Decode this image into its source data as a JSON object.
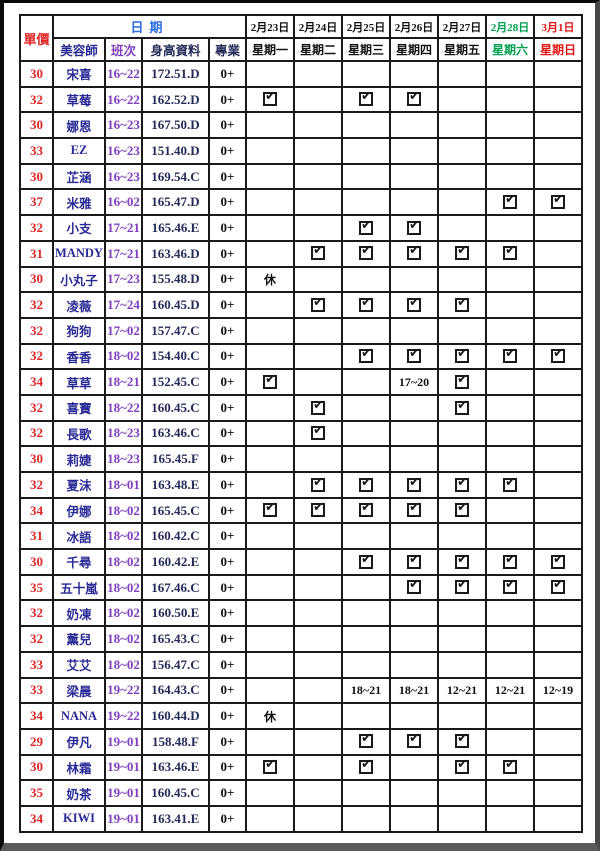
{
  "columns": {
    "price": "單價",
    "date_group": "日期",
    "name": "美容師",
    "shift": "班次",
    "stats": "身高資料",
    "specialty": "專業"
  },
  "days": [
    {
      "date": "2月23日",
      "weekday": "星期一",
      "color": "#111111"
    },
    {
      "date": "2月24日",
      "weekday": "星期二",
      "color": "#111111"
    },
    {
      "date": "2月25日",
      "weekday": "星期三",
      "color": "#111111"
    },
    {
      "date": "2月26日",
      "weekday": "星期四",
      "color": "#111111"
    },
    {
      "date": "2月27日",
      "weekday": "星期五",
      "color": "#111111"
    },
    {
      "date": "2月28日",
      "weekday": "星期六",
      "color": "#00A050"
    },
    {
      "date": "3月1日",
      "weekday": "星期日",
      "color": "#E01515"
    }
  ],
  "colors": {
    "price": "#e02525",
    "name": "#2a2a96",
    "shift": "#8040c0",
    "stats": "#242b58",
    "date_group": "#2a6de0",
    "saturday": "#00A050",
    "sunday": "#E01515",
    "grid": "#1a1a1a"
  },
  "legend": {
    "check_meaning": "checkbox-checked",
    "rest_label": "休"
  },
  "rows": [
    {
      "price": "30",
      "name": "宋喜",
      "shift": "16~22",
      "stats": "172.51.D",
      "spec": "0+",
      "days": [
        "",
        "",
        "",
        "",
        "",
        "",
        ""
      ]
    },
    {
      "price": "32",
      "name": "草莓",
      "shift": "16~22",
      "stats": "162.52.D",
      "spec": "0+",
      "days": [
        "check",
        "",
        "check",
        "check",
        "",
        "",
        ""
      ]
    },
    {
      "price": "30",
      "name": "娜恩",
      "shift": "16~23",
      "stats": "167.50.D",
      "spec": "0+",
      "days": [
        "",
        "",
        "",
        "",
        "",
        "",
        ""
      ]
    },
    {
      "price": "33",
      "name": "EZ",
      "shift": "16~23",
      "stats": "151.40.D",
      "spec": "0+",
      "days": [
        "",
        "",
        "",
        "",
        "",
        "",
        ""
      ]
    },
    {
      "price": "30",
      "name": "芷涵",
      "shift": "16~23",
      "stats": "169.54.C",
      "spec": "0+",
      "days": [
        "",
        "",
        "",
        "",
        "",
        "",
        ""
      ]
    },
    {
      "price": "37",
      "name": "米雅",
      "shift": "16~02",
      "stats": "165.47.D",
      "spec": "0+",
      "days": [
        "",
        "",
        "",
        "",
        "",
        "check",
        "check"
      ]
    },
    {
      "price": "32",
      "name": "小支",
      "shift": "17~21",
      "stats": "165.46.E",
      "spec": "0+",
      "days": [
        "",
        "",
        "check",
        "check",
        "",
        "",
        ""
      ]
    },
    {
      "price": "31",
      "name": "MANDY",
      "shift": "17~21",
      "stats": "163.46.D",
      "spec": "0+",
      "days": [
        "",
        "check",
        "check",
        "check",
        "check",
        "check",
        ""
      ]
    },
    {
      "price": "30",
      "name": "小丸子",
      "shift": "17~23",
      "stats": "155.48.D",
      "spec": "0+",
      "days": [
        "休",
        "",
        "",
        "",
        "",
        "",
        ""
      ]
    },
    {
      "price": "32",
      "name": "凌薇",
      "shift": "17~24",
      "stats": "160.45.D",
      "spec": "0+",
      "days": [
        "",
        "check",
        "check",
        "check",
        "check",
        "",
        ""
      ]
    },
    {
      "price": "32",
      "name": "狗狗",
      "shift": "17~02",
      "stats": "157.47.C",
      "spec": "0+",
      "days": [
        "",
        "",
        "",
        "",
        "",
        "",
        ""
      ]
    },
    {
      "price": "32",
      "name": "香香",
      "shift": "18~02",
      "stats": "154.40.C",
      "spec": "0+",
      "days": [
        "",
        "",
        "check",
        "check",
        "check",
        "check",
        "check"
      ]
    },
    {
      "price": "34",
      "name": "草草",
      "shift": "18~21",
      "stats": "152.45.C",
      "spec": "0+",
      "days": [
        "check",
        "",
        "",
        "17~20",
        "check",
        "",
        ""
      ]
    },
    {
      "price": "32",
      "name": "喜寶",
      "shift": "18~22",
      "stats": "160.45.C",
      "spec": "0+",
      "days": [
        "",
        "check",
        "",
        "",
        "check",
        "",
        ""
      ]
    },
    {
      "price": "32",
      "name": "長歌",
      "shift": "18~23",
      "stats": "163.46.C",
      "spec": "0+",
      "days": [
        "",
        "check",
        "",
        "",
        "",
        "",
        ""
      ]
    },
    {
      "price": "30",
      "name": "莉婕",
      "shift": "18~23",
      "stats": "165.45.F",
      "spec": "0+",
      "days": [
        "",
        "",
        "",
        "",
        "",
        "",
        ""
      ]
    },
    {
      "price": "32",
      "name": "夏沫",
      "shift": "18~01",
      "stats": "163.48.E",
      "spec": "0+",
      "days": [
        "",
        "check",
        "check",
        "check",
        "check",
        "check",
        ""
      ]
    },
    {
      "price": "34",
      "name": "伊娜",
      "shift": "18~02",
      "stats": "165.45.C",
      "spec": "0+",
      "days": [
        "check",
        "check",
        "check",
        "check",
        "check",
        "",
        ""
      ]
    },
    {
      "price": "31",
      "name": "冰語",
      "shift": "18~02",
      "stats": "160.42.C",
      "spec": "0+",
      "days": [
        "",
        "",
        "",
        "",
        "",
        "",
        ""
      ]
    },
    {
      "price": "30",
      "name": "千尋",
      "shift": "18~02",
      "stats": "160.42.E",
      "spec": "0+",
      "days": [
        "",
        "",
        "check",
        "check",
        "check",
        "check",
        "check"
      ]
    },
    {
      "price": "35",
      "name": "五十嵐",
      "shift": "18~02",
      "stats": "167.46.C",
      "spec": "0+",
      "days": [
        "",
        "",
        "",
        "check",
        "check",
        "check",
        "check"
      ]
    },
    {
      "price": "32",
      "name": "奶凍",
      "shift": "18~02",
      "stats": "160.50.E",
      "spec": "0+",
      "days": [
        "",
        "",
        "",
        "",
        "",
        "",
        ""
      ]
    },
    {
      "price": "32",
      "name": "薰兒",
      "shift": "18~02",
      "stats": "165.43.C",
      "spec": "0+",
      "days": [
        "",
        "",
        "",
        "",
        "",
        "",
        ""
      ]
    },
    {
      "price": "33",
      "name": "艾艾",
      "shift": "18~02",
      "stats": "156.47.C",
      "spec": "0+",
      "days": [
        "",
        "",
        "",
        "",
        "",
        "",
        ""
      ]
    },
    {
      "price": "33",
      "name": "梁晨",
      "shift": "19~22",
      "stats": "164.43.C",
      "spec": "0+",
      "days": [
        "",
        "",
        "18~21",
        "18~21",
        "12~21",
        "12~21",
        "12~19"
      ]
    },
    {
      "price": "34",
      "name": "NANA",
      "shift": "19~22",
      "stats": "160.44.D",
      "spec": "0+",
      "days": [
        "休",
        "",
        "",
        "",
        "",
        "",
        ""
      ]
    },
    {
      "price": "29",
      "name": "伊凡",
      "shift": "19~01",
      "stats": "158.48.F",
      "spec": "0+",
      "days": [
        "",
        "",
        "check",
        "check",
        "check",
        "",
        ""
      ]
    },
    {
      "price": "30",
      "name": "林霜",
      "shift": "19~01",
      "stats": "163.46.E",
      "spec": "0+",
      "days": [
        "check",
        "",
        "check",
        "",
        "check",
        "check",
        ""
      ]
    },
    {
      "price": "35",
      "name": "奶茶",
      "shift": "19~01",
      "stats": "160.45.C",
      "spec": "0+",
      "days": [
        "",
        "",
        "",
        "",
        "",
        "",
        ""
      ]
    },
    {
      "price": "34",
      "name": "KIWI",
      "shift": "19~01",
      "stats": "163.41.E",
      "spec": "0+",
      "days": [
        "",
        "",
        "",
        "",
        "",
        "",
        ""
      ]
    }
  ]
}
